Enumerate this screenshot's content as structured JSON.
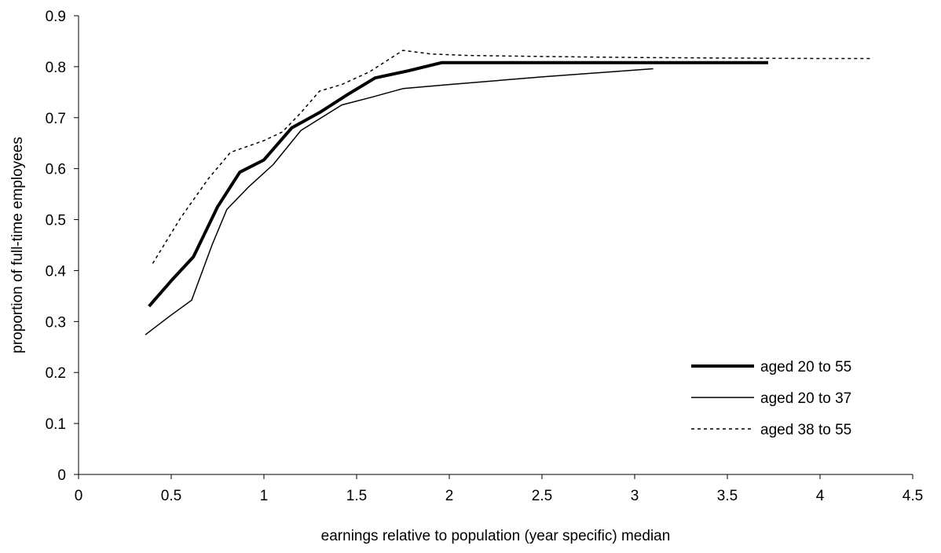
{
  "chart_data": {
    "type": "line",
    "title": "",
    "xlabel": "earnings relative to population (year specific) median",
    "ylabel": "proportion of full-time employees",
    "xlim": [
      0,
      4.5
    ],
    "ylim": [
      0,
      0.9
    ],
    "xticks": [
      0,
      0.5,
      1,
      1.5,
      2,
      2.5,
      3,
      3.5,
      4,
      4.5
    ],
    "xtick_labels": [
      "0",
      "0.5",
      "1",
      "1.5",
      "2",
      "2.5",
      "3",
      "3.5",
      "4",
      "4.5"
    ],
    "yticks": [
      0,
      0.1,
      0.2,
      0.3,
      0.4,
      0.5,
      0.6,
      0.7,
      0.8,
      0.9
    ],
    "ytick_labels": [
      "0",
      "0.1",
      "0.2",
      "0.3",
      "0.4",
      "0.5",
      "0.6",
      "0.7",
      "0.8",
      "0.9"
    ],
    "grid": false,
    "legend_position": "bottom-right",
    "series": [
      {
        "name": "aged 20 to 55",
        "style": "thick-solid",
        "color": "#000000",
        "x": [
          0.38,
          0.5,
          0.62,
          0.75,
          0.87,
          1.0,
          1.15,
          1.3,
          1.45,
          1.6,
          1.78,
          1.96,
          2.2,
          2.6,
          3.0,
          3.4,
          3.72
        ],
        "y": [
          0.33,
          0.38,
          0.427,
          0.525,
          0.593,
          0.617,
          0.68,
          0.71,
          0.745,
          0.778,
          0.792,
          0.808,
          0.808,
          0.808,
          0.808,
          0.808,
          0.808
        ]
      },
      {
        "name": "aged 20 to 37",
        "style": "thin-solid",
        "color": "#000000",
        "x": [
          0.36,
          0.49,
          0.61,
          0.72,
          0.8,
          0.92,
          1.05,
          1.2,
          1.42,
          1.58,
          1.75,
          2.0,
          2.5,
          3.1
        ],
        "y": [
          0.274,
          0.31,
          0.342,
          0.45,
          0.52,
          0.565,
          0.608,
          0.675,
          0.725,
          0.74,
          0.757,
          0.765,
          0.78,
          0.796
        ]
      },
      {
        "name": "aged 38 to 55",
        "style": "dashed",
        "color": "#000000",
        "x": [
          0.4,
          0.55,
          0.7,
          0.82,
          1.0,
          1.1,
          1.2,
          1.3,
          1.42,
          1.57,
          1.75,
          1.9,
          2.1,
          2.5,
          3.0,
          3.5,
          4.0,
          4.28
        ],
        "y": [
          0.414,
          0.503,
          0.58,
          0.632,
          0.655,
          0.672,
          0.71,
          0.752,
          0.765,
          0.79,
          0.832,
          0.825,
          0.822,
          0.82,
          0.818,
          0.817,
          0.816,
          0.816
        ]
      }
    ]
  }
}
